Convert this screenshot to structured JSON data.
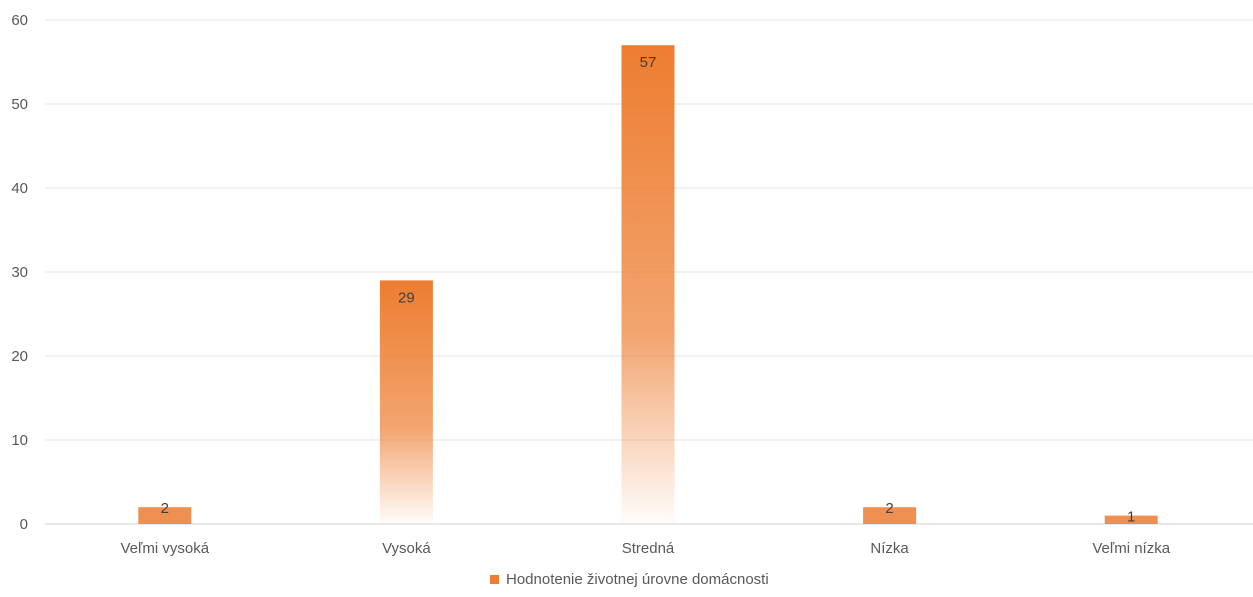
{
  "chart_data": {
    "type": "bar",
    "categories": [
      "Veľmi vysoká",
      "Vysoká",
      "Stredná",
      "Nízka",
      "Veľmi nízka"
    ],
    "series": [
      {
        "name": "Hodnotenie životnej úrovne domácnosti",
        "values": [
          2,
          29,
          57,
          2,
          1
        ],
        "color": "#ED7D31"
      }
    ],
    "data_labels": [
      "2",
      "29",
      "57",
      "2",
      "1"
    ],
    "ylim": [
      0,
      60
    ],
    "yticks": [
      0,
      10,
      20,
      30,
      40,
      50,
      60
    ],
    "ytick_labels": [
      "0",
      "10",
      "20",
      "30",
      "40",
      "50",
      "60"
    ],
    "grid": true,
    "legend_position": "bottom",
    "bar_fill": "gradient orange to white"
  }
}
